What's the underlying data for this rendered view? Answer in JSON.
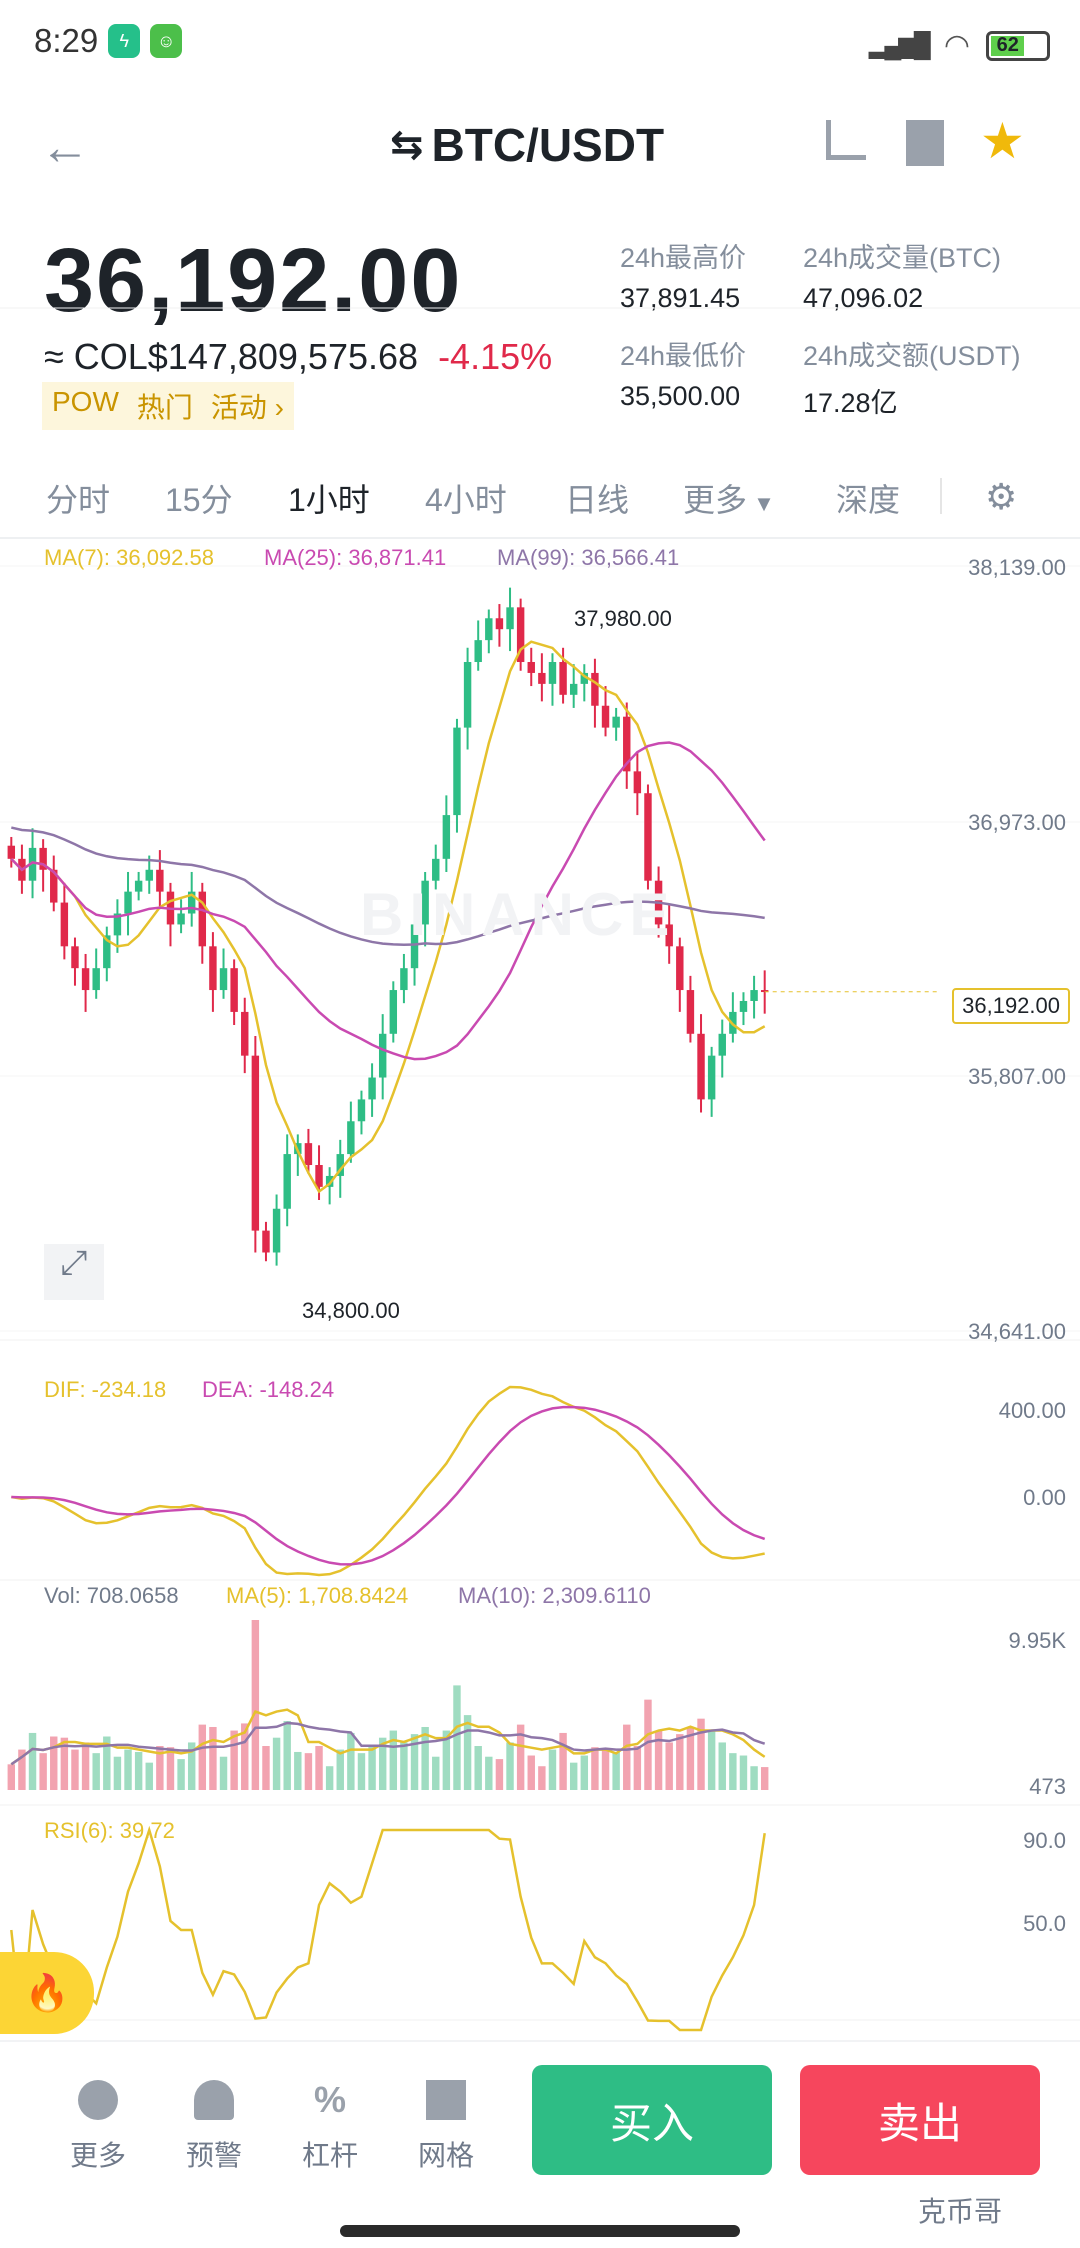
{
  "status_bar": {
    "time": "8:29",
    "battery": "62"
  },
  "header": {
    "title": "BTC/USDT"
  },
  "price": {
    "last": "36,192.00",
    "fiat": "≈ COL$147,809,575.68",
    "change": "-4.15%",
    "tags": [
      "POW",
      "热门",
      "活动 ›"
    ]
  },
  "stats": [
    {
      "label": "24h最高价",
      "value": "37,891.45"
    },
    {
      "label": "24h成交量(BTC)",
      "value": "47,096.02"
    },
    {
      "label": "24h最低价",
      "value": "35,500.00"
    },
    {
      "label": "24h成交额(USDT)",
      "value": "17.28亿"
    }
  ],
  "tabs": [
    "分时",
    "15分",
    "1小时",
    "4小时",
    "日线",
    "更多",
    "深度"
  ],
  "active_tab": "1小时",
  "colors": {
    "up": "#2ebd85",
    "down": "#e0294a",
    "ma7": "#e5c12d",
    "ma25": "#c94ab1",
    "ma99": "#8e76a8",
    "buy": "#2ebd85",
    "sell": "#f6465d"
  },
  "main_chart": {
    "legend": {
      "ma7": "MA(7): 36,092.58",
      "ma25": "MA(25): 36,871.41",
      "ma99": "MA(99): 36,566.41"
    },
    "axis": [
      "38,139.00",
      "36,973.00",
      "35,807.00",
      "34,641.00"
    ],
    "high_marker": "37,980.00",
    "low_marker": "34,800.00",
    "current": "36,192.00",
    "watermark": "BINANCE"
  },
  "chart_data": {
    "type": "candlestick",
    "ylim": [
      34641,
      38139
    ],
    "closes": [
      36800,
      36700,
      36850,
      36750,
      36600,
      36400,
      36300,
      36200,
      36300,
      36450,
      36550,
      36650,
      36700,
      36750,
      36650,
      36500,
      36550,
      36650,
      36400,
      36200,
      36300,
      36100,
      35900,
      35100,
      35000,
      35200,
      35450,
      35500,
      35400,
      35300,
      35350,
      35450,
      35600,
      35700,
      35800,
      36000,
      36200,
      36300,
      36500,
      36700,
      36800,
      37000,
      37400,
      37700,
      37800,
      37900,
      37850,
      37950,
      37700,
      37650,
      37600,
      37700,
      37550,
      37600,
      37650,
      37500,
      37400,
      37450,
      37200,
      37100,
      36700,
      36500,
      36400,
      36200,
      36000,
      35700,
      35900,
      36000,
      36100,
      36150,
      36200,
      36192
    ]
  },
  "macd": {
    "dif": "DIF: -234.18",
    "dea": "DEA: -148.24",
    "axis": [
      "400.00",
      "0.00"
    ]
  },
  "volume": {
    "vol": "Vol: 708.0658",
    "ma5": "MA(5): 1,708.8424",
    "ma10": "MA(10): 2,309.6110",
    "axis": [
      "9.95K",
      "473"
    ]
  },
  "rsi": {
    "label": "RSI(6): 39.72",
    "axis": [
      "90.0",
      "50.0"
    ]
  },
  "bottom": {
    "items": [
      "更多",
      "预警",
      "杠杆",
      "网格"
    ],
    "buy": "买入",
    "sell": "卖出",
    "watermark": "克币哥"
  }
}
